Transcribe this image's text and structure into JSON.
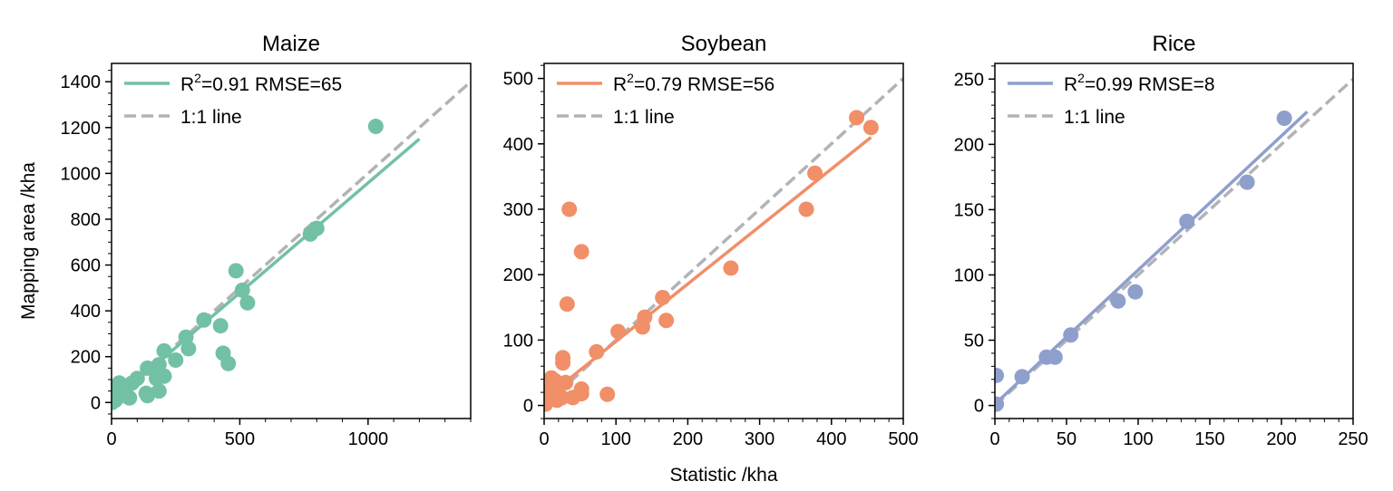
{
  "colors": {
    "maize": "#72c1a5",
    "soybean": "#f08f68",
    "rice": "#8f9fcc",
    "one_to_one": "#b1b3b8",
    "axes": "#000000"
  },
  "figure": {
    "xlabel": "Statistic /kha",
    "ylabel": "Mapping area /kha"
  },
  "chart_data": [
    {
      "type": "scatter",
      "title": "Maize",
      "color_key": "maize",
      "xlim": [
        0,
        1400
      ],
      "ylim": [
        -70,
        1480
      ],
      "x_ticks": [
        0,
        500,
        1000
      ],
      "x_tick_labels": [
        "0",
        "500",
        "1000"
      ],
      "x_minor_step": 100,
      "y_ticks": [
        0,
        200,
        400,
        600,
        800,
        1000,
        1200,
        1400
      ],
      "y_tick_labels": [
        "0",
        "200",
        "400",
        "600",
        "800",
        "1000",
        "1200",
        "1400"
      ],
      "y_minor_step": 50,
      "legend": {
        "fit_prefix": "R",
        "fit_sup": "2",
        "fit_suffix": "=0.91 RMSE=65",
        "one_to_one": "1:1 line",
        "placement": "top-left"
      },
      "fit_line": {
        "x": [
          0,
          1200
        ],
        "y": [
          0,
          1150
        ]
      },
      "one_to_one_line": {
        "x": [
          0,
          1400
        ],
        "y": [
          0,
          1400
        ]
      },
      "points": [
        {
          "x": 1030,
          "y": 1205
        },
        {
          "x": 800,
          "y": 760
        },
        {
          "x": 775,
          "y": 735
        },
        {
          "x": 485,
          "y": 575
        },
        {
          "x": 510,
          "y": 490
        },
        {
          "x": 530,
          "y": 435
        },
        {
          "x": 360,
          "y": 360
        },
        {
          "x": 425,
          "y": 335
        },
        {
          "x": 435,
          "y": 215
        },
        {
          "x": 455,
          "y": 170
        },
        {
          "x": 290,
          "y": 285
        },
        {
          "x": 300,
          "y": 235
        },
        {
          "x": 205,
          "y": 225
        },
        {
          "x": 250,
          "y": 185
        },
        {
          "x": 185,
          "y": 165
        },
        {
          "x": 140,
          "y": 150
        },
        {
          "x": 175,
          "y": 140
        },
        {
          "x": 205,
          "y": 115
        },
        {
          "x": 175,
          "y": 105
        },
        {
          "x": 100,
          "y": 105
        },
        {
          "x": 80,
          "y": 85
        },
        {
          "x": 30,
          "y": 85
        },
        {
          "x": 60,
          "y": 70
        },
        {
          "x": 20,
          "y": 60
        },
        {
          "x": 10,
          "y": 40
        },
        {
          "x": 40,
          "y": 30
        },
        {
          "x": 70,
          "y": 20
        },
        {
          "x": 135,
          "y": 40
        },
        {
          "x": 140,
          "y": 30
        },
        {
          "x": 185,
          "y": 50
        },
        {
          "x": 15,
          "y": 10
        },
        {
          "x": 5,
          "y": 5
        },
        {
          "x": 2,
          "y": 0
        }
      ]
    },
    {
      "type": "scatter",
      "title": "Soybean",
      "color_key": "soybean",
      "xlim": [
        0,
        500
      ],
      "ylim": [
        -20,
        523
      ],
      "x_ticks": [
        0,
        100,
        200,
        300,
        400,
        500
      ],
      "x_tick_labels": [
        "0",
        "100",
        "200",
        "300",
        "400",
        "500"
      ],
      "x_minor_step": 20,
      "y_ticks": [
        0,
        100,
        200,
        300,
        400,
        500
      ],
      "y_tick_labels": [
        "0",
        "100",
        "200",
        "300",
        "400",
        "500"
      ],
      "y_minor_step": 20,
      "legend": {
        "fit_prefix": "R",
        "fit_sup": "2",
        "fit_suffix": "=0.79 RMSE=56",
        "one_to_one": "1:1 line",
        "placement": "top-left"
      },
      "fit_line": {
        "x": [
          0,
          455
        ],
        "y": [
          10,
          410
        ]
      },
      "one_to_one_line": {
        "x": [
          0,
          500
        ],
        "y": [
          0,
          500
        ]
      },
      "points": [
        {
          "x": 435,
          "y": 440
        },
        {
          "x": 455,
          "y": 425
        },
        {
          "x": 377,
          "y": 355
        },
        {
          "x": 365,
          "y": 300
        },
        {
          "x": 260,
          "y": 210
        },
        {
          "x": 35,
          "y": 300
        },
        {
          "x": 52,
          "y": 235
        },
        {
          "x": 32,
          "y": 155
        },
        {
          "x": 165,
          "y": 165
        },
        {
          "x": 140,
          "y": 135
        },
        {
          "x": 137,
          "y": 120
        },
        {
          "x": 170,
          "y": 130
        },
        {
          "x": 103,
          "y": 113
        },
        {
          "x": 73,
          "y": 82
        },
        {
          "x": 26,
          "y": 73
        },
        {
          "x": 26,
          "y": 65
        },
        {
          "x": 88,
          "y": 17
        },
        {
          "x": 52,
          "y": 25
        },
        {
          "x": 52,
          "y": 18
        },
        {
          "x": 40,
          "y": 12
        },
        {
          "x": 30,
          "y": 35
        },
        {
          "x": 20,
          "y": 30
        },
        {
          "x": 10,
          "y": 42
        },
        {
          "x": 15,
          "y": 38
        },
        {
          "x": 8,
          "y": 25
        },
        {
          "x": 12,
          "y": 15
        },
        {
          "x": 18,
          "y": 8
        },
        {
          "x": 25,
          "y": 12
        },
        {
          "x": 5,
          "y": 10
        },
        {
          "x": 3,
          "y": 5
        },
        {
          "x": 2,
          "y": 2
        }
      ]
    },
    {
      "type": "scatter",
      "title": "Rice",
      "color_key": "rice",
      "xlim": [
        0,
        250
      ],
      "ylim": [
        -10,
        262
      ],
      "x_ticks": [
        0,
        50,
        100,
        150,
        200,
        250
      ],
      "x_tick_labels": [
        "0",
        "50",
        "100",
        "150",
        "200",
        "250"
      ],
      "x_minor_step": 10,
      "y_ticks": [
        0,
        50,
        100,
        150,
        200,
        250
      ],
      "y_tick_labels": [
        "0",
        "50",
        "100",
        "150",
        "200",
        "250"
      ],
      "y_minor_step": 10,
      "legend": {
        "fit_prefix": "R",
        "fit_sup": "2",
        "fit_suffix": "=0.99 RMSE=8",
        "one_to_one": "1:1 line",
        "placement": "top-left"
      },
      "fit_line": {
        "x": [
          0,
          218
        ],
        "y": [
          1,
          225
        ]
      },
      "one_to_one_line": {
        "x": [
          0,
          250
        ],
        "y": [
          0,
          250
        ]
      },
      "points": [
        {
          "x": 202,
          "y": 220
        },
        {
          "x": 176,
          "y": 171
        },
        {
          "x": 134,
          "y": 141
        },
        {
          "x": 98,
          "y": 87
        },
        {
          "x": 86,
          "y": 80
        },
        {
          "x": 53,
          "y": 54
        },
        {
          "x": 42,
          "y": 37
        },
        {
          "x": 36,
          "y": 37
        },
        {
          "x": 19,
          "y": 22
        },
        {
          "x": 1,
          "y": 23
        },
        {
          "x": 1,
          "y": 1
        }
      ]
    }
  ]
}
